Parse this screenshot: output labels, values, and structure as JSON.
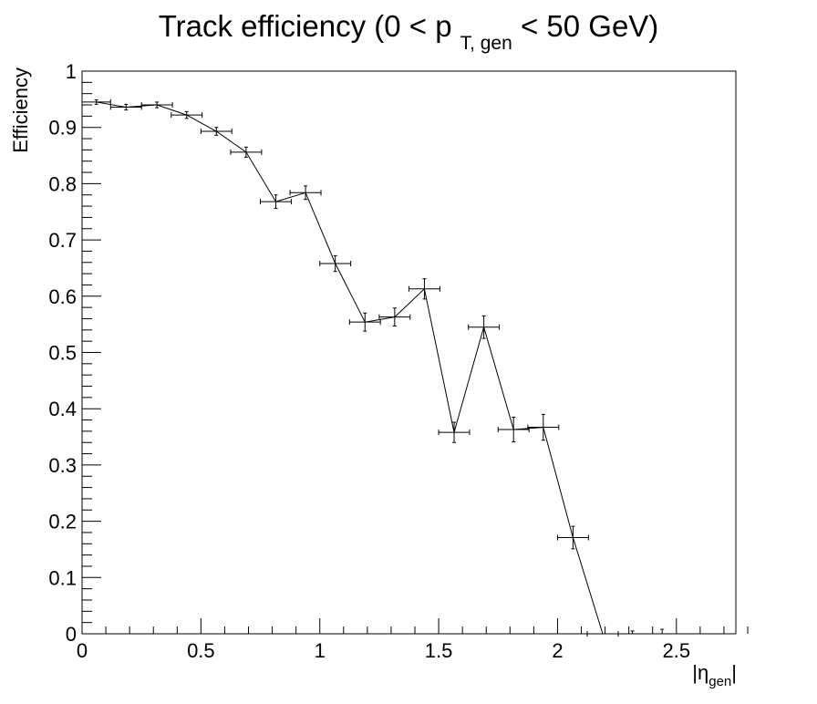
{
  "chart_data": {
    "type": "scatter",
    "title": {
      "main": "Track efficiency (0 < p",
      "sub": "T, gen",
      "rest": " < 50 GeV)"
    },
    "xlabel": {
      "main": "|η",
      "sub": "gen",
      "rest": "|"
    },
    "ylabel": "Efficiency",
    "xlim": [
      0,
      2.75
    ],
    "ylim": [
      0,
      1
    ],
    "x_ticks": [
      "0",
      "0.5",
      "1",
      "1.5",
      "2",
      "2.5"
    ],
    "y_ticks": [
      "0",
      "0.1",
      "0.2",
      "0.3",
      "0.4",
      "0.5",
      "0.6",
      "0.7",
      "0.8",
      "0.9",
      "1"
    ],
    "series": [
      {
        "points": [
          {
            "x": 0.06,
            "xerr": 0.06,
            "y": 0.945,
            "yerr": 0.004
          },
          {
            "x": 0.185,
            "xerr": 0.065,
            "y": 0.936,
            "yerr": 0.005
          },
          {
            "x": 0.315,
            "xerr": 0.065,
            "y": 0.94,
            "yerr": 0.005
          },
          {
            "x": 0.44,
            "xerr": 0.065,
            "y": 0.922,
            "yerr": 0.006
          },
          {
            "x": 0.565,
            "xerr": 0.065,
            "y": 0.893,
            "yerr": 0.007
          },
          {
            "x": 0.69,
            "xerr": 0.065,
            "y": 0.856,
            "yerr": 0.009
          },
          {
            "x": 0.815,
            "xerr": 0.065,
            "y": 0.768,
            "yerr": 0.012
          },
          {
            "x": 0.94,
            "xerr": 0.065,
            "y": 0.784,
            "yerr": 0.012
          },
          {
            "x": 1.065,
            "xerr": 0.065,
            "y": 0.658,
            "yerr": 0.014
          },
          {
            "x": 1.19,
            "xerr": 0.065,
            "y": 0.554,
            "yerr": 0.016
          },
          {
            "x": 1.315,
            "xerr": 0.065,
            "y": 0.563,
            "yerr": 0.016
          },
          {
            "x": 1.44,
            "xerr": 0.065,
            "y": 0.613,
            "yerr": 0.018
          },
          {
            "x": 1.565,
            "xerr": 0.065,
            "y": 0.358,
            "yerr": 0.018
          },
          {
            "x": 1.69,
            "xerr": 0.065,
            "y": 0.545,
            "yerr": 0.02
          },
          {
            "x": 1.815,
            "xerr": 0.065,
            "y": 0.363,
            "yerr": 0.022
          },
          {
            "x": 1.94,
            "xerr": 0.065,
            "y": 0.367,
            "yerr": 0.023
          },
          {
            "x": 2.065,
            "xerr": 0.065,
            "y": 0.171,
            "yerr": 0.02
          },
          {
            "x": 2.19,
            "xerr": 0.065,
            "y": 0.0,
            "yerr": 0.0
          },
          {
            "x": 2.315,
            "xerr": 0.0,
            "y": 0.0,
            "yerr": 0.005
          },
          {
            "x": 2.44,
            "xerr": 0.0,
            "y": 0.0,
            "yerr": 0.008
          }
        ]
      }
    ],
    "grid": false,
    "colors": {
      "marker": "#000000",
      "frame": "#000000",
      "background": "#ffffff"
    }
  }
}
